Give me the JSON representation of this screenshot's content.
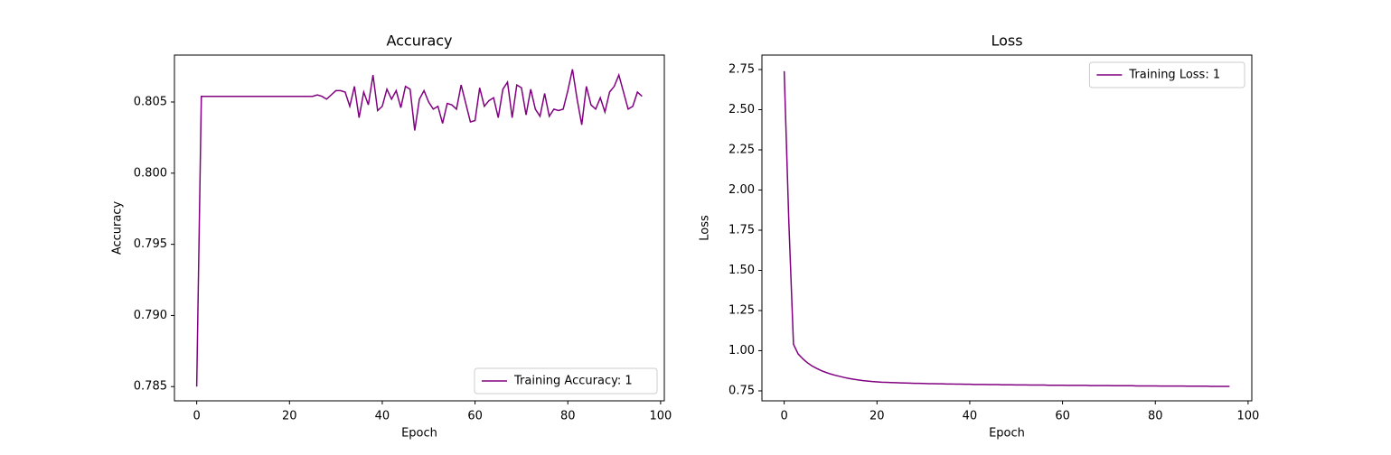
{
  "chart_data": [
    {
      "type": "line",
      "title": "Accuracy",
      "xlabel": "Epoch",
      "ylabel": "Accuracy",
      "x": [
        0,
        1,
        2,
        3,
        4,
        5,
        6,
        7,
        8,
        9,
        10,
        11,
        12,
        13,
        14,
        15,
        16,
        17,
        18,
        19,
        20,
        21,
        22,
        23,
        24,
        25,
        26,
        27,
        28,
        29,
        30,
        31,
        32,
        33,
        34,
        35,
        36,
        37,
        38,
        39,
        40,
        41,
        42,
        43,
        44,
        45,
        46,
        47,
        48,
        49,
        50,
        51,
        52,
        53,
        54,
        55,
        56,
        57,
        58,
        59,
        60,
        61,
        62,
        63,
        64,
        65,
        66,
        67,
        68,
        69,
        70,
        71,
        72,
        73,
        74,
        75,
        76,
        77,
        78,
        79,
        80,
        81,
        82,
        83,
        84,
        85,
        86,
        87,
        88,
        89,
        90,
        91,
        92,
        93,
        94,
        95,
        96
      ],
      "series": [
        {
          "name": "Training Accuracy: 1",
          "color": "#800080",
          "values": [
            0.785,
            0.8054,
            0.8054,
            0.8054,
            0.8054,
            0.8054,
            0.8054,
            0.8054,
            0.8054,
            0.8054,
            0.8054,
            0.8054,
            0.8054,
            0.8054,
            0.8054,
            0.8054,
            0.8054,
            0.8054,
            0.8054,
            0.8054,
            0.8054,
            0.8054,
            0.8054,
            0.8054,
            0.8054,
            0.8054,
            0.8055,
            0.8054,
            0.8052,
            0.8055,
            0.8058,
            0.8058,
            0.8057,
            0.8047,
            0.8061,
            0.8039,
            0.8057,
            0.8048,
            0.8069,
            0.8044,
            0.8047,
            0.8059,
            0.8052,
            0.8058,
            0.8046,
            0.8061,
            0.8059,
            0.803,
            0.8052,
            0.8058,
            0.805,
            0.8045,
            0.8047,
            0.8035,
            0.8049,
            0.8048,
            0.8045,
            0.8062,
            0.8049,
            0.8036,
            0.8037,
            0.806,
            0.8047,
            0.8051,
            0.8053,
            0.8039,
            0.8059,
            0.8064,
            0.8039,
            0.8062,
            0.806,
            0.8041,
            0.8059,
            0.8045,
            0.804,
            0.8056,
            0.804,
            0.8045,
            0.8044,
            0.8045,
            0.8058,
            0.8073,
            0.8052,
            0.8034,
            0.8061,
            0.8048,
            0.8045,
            0.8053,
            0.8043,
            0.8057,
            0.8061,
            0.8069,
            0.8057,
            0.8045,
            0.8047,
            0.8057,
            0.8054
          ]
        }
      ],
      "xlim": [
        -4.8,
        100.8
      ],
      "ylim": [
        0.784,
        0.8083
      ],
      "xticks": [
        0,
        20,
        40,
        60,
        80,
        100
      ],
      "yticks": [
        0.785,
        {
          "value": 0.79,
          "label": "0.790"
        },
        0.795,
        {
          "value": 0.8,
          "label": "0.800"
        },
        0.805
      ],
      "legend": "lower right"
    },
    {
      "type": "line",
      "title": "Loss",
      "xlabel": "Epoch",
      "ylabel": "Loss",
      "x": [
        0,
        1,
        2,
        3,
        4,
        5,
        6,
        7,
        8,
        9,
        10,
        11,
        12,
        13,
        14,
        15,
        16,
        17,
        18,
        19,
        20,
        21,
        22,
        23,
        24,
        25,
        26,
        27,
        28,
        29,
        30,
        31,
        32,
        33,
        34,
        35,
        36,
        37,
        38,
        39,
        40,
        41,
        42,
        43,
        44,
        45,
        46,
        47,
        48,
        49,
        50,
        51,
        52,
        53,
        54,
        55,
        56,
        57,
        58,
        59,
        60,
        61,
        62,
        63,
        64,
        65,
        66,
        67,
        68,
        69,
        70,
        71,
        72,
        73,
        74,
        75,
        76,
        77,
        78,
        79,
        80,
        81,
        82,
        83,
        84,
        85,
        86,
        87,
        88,
        89,
        90,
        91,
        92,
        93,
        94,
        95,
        96
      ],
      "series": [
        {
          "name": "Training Loss: 1",
          "color": "#800080",
          "values": [
            2.74,
            1.8,
            1.04,
            0.98,
            0.95,
            0.925,
            0.905,
            0.89,
            0.876,
            0.865,
            0.855,
            0.847,
            0.84,
            0.833,
            0.827,
            0.822,
            0.818,
            0.814,
            0.811,
            0.808,
            0.806,
            0.804,
            0.803,
            0.802,
            0.801,
            0.8,
            0.799,
            0.798,
            0.797,
            0.797,
            0.796,
            0.795,
            0.795,
            0.794,
            0.794,
            0.793,
            0.793,
            0.792,
            0.792,
            0.791,
            0.791,
            0.79,
            0.79,
            0.79,
            0.789,
            0.789,
            0.789,
            0.788,
            0.788,
            0.788,
            0.787,
            0.787,
            0.787,
            0.786,
            0.786,
            0.786,
            0.786,
            0.785,
            0.785,
            0.785,
            0.785,
            0.784,
            0.784,
            0.784,
            0.784,
            0.784,
            0.783,
            0.783,
            0.783,
            0.783,
            0.783,
            0.782,
            0.782,
            0.782,
            0.782,
            0.782,
            0.781,
            0.781,
            0.781,
            0.781,
            0.781,
            0.78,
            0.78,
            0.78,
            0.78,
            0.78,
            0.78,
            0.779,
            0.779,
            0.779,
            0.779,
            0.779,
            0.778,
            0.778,
            0.778,
            0.778,
            0.778
          ]
        }
      ],
      "xlim": [
        -4.8,
        100.8
      ],
      "ylim": [
        0.688,
        2.84
      ],
      "xticks": [
        0,
        20,
        40,
        60,
        80,
        100
      ],
      "yticks": [
        0.75,
        {
          "value": 1,
          "label": "1.00"
        },
        1.25,
        {
          "value": 1.5,
          "label": "1.50"
        },
        {
          "value": 1.75,
          "label": "1.75"
        },
        {
          "value": 2,
          "label": "2.00"
        },
        2.25,
        {
          "value": 2.5,
          "label": "2.50"
        },
        2.75
      ],
      "legend": "upper right"
    }
  ]
}
